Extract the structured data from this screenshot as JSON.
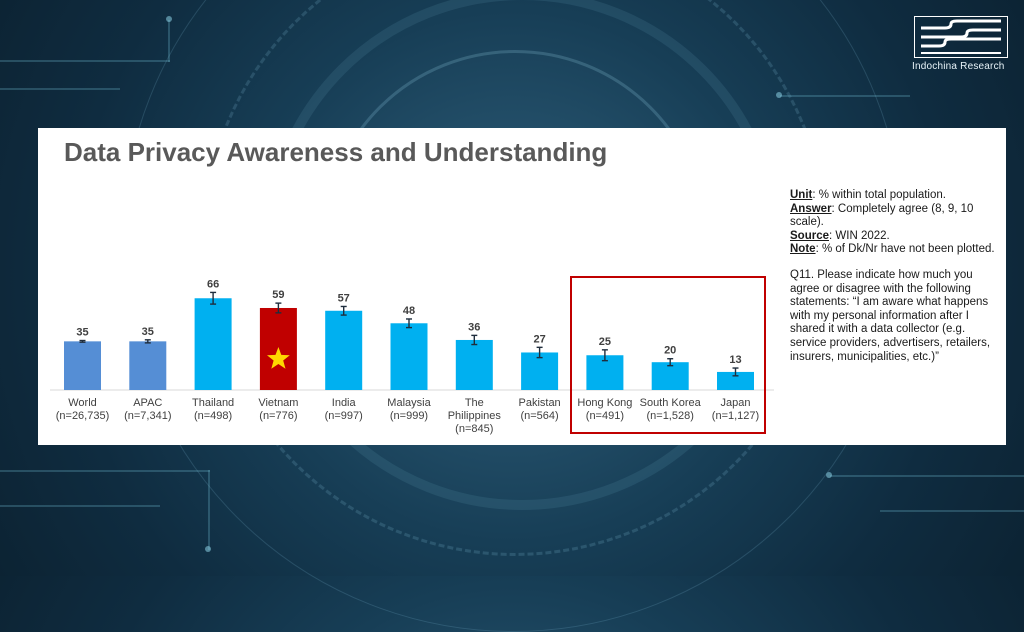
{
  "brand": {
    "name": "Indochina Research"
  },
  "chart_data": {
    "type": "bar",
    "title": "Data Privacy Awareness and Understanding",
    "categories": [
      "World (n=26,735)",
      "APAC (n=7,341)",
      "Thailand (n=498)",
      "Vietnam (n=776)",
      "India (n=997)",
      "Malaysia (n=999)",
      "The Philippines (n=845)",
      "Pakistan (n=564)",
      "Hong Kong (n=491)",
      "South Korea (n=1,528)",
      "Japan (n=1,127)"
    ],
    "category_lines": [
      [
        "World",
        "(n=26,735)"
      ],
      [
        "APAC",
        "(n=7,341)"
      ],
      [
        "Thailand",
        "(n=498)"
      ],
      [
        "Vietnam",
        "(n=776)"
      ],
      [
        "India",
        "(n=997)"
      ],
      [
        "Malaysia",
        "(n=999)"
      ],
      [
        "The",
        "Philippines",
        "(n=845)"
      ],
      [
        "Pakistan",
        "(n=564)"
      ],
      [
        "Hong Kong",
        "(n=491)"
      ],
      [
        "South Korea",
        "(n=1,528)"
      ],
      [
        "Japan",
        "(n=1,127)"
      ]
    ],
    "values": [
      35,
      35,
      66,
      59,
      57,
      48,
      36,
      27,
      25,
      20,
      13
    ],
    "error_margin": [
      0.6,
      1.1,
      4.2,
      3.5,
      3.1,
      3.1,
      3.3,
      3.7,
      3.9,
      2.5,
      2.8
    ],
    "bar_colors": [
      "#558ed5",
      "#558ed5",
      "#00b0f0",
      "#c00000",
      "#00b0f0",
      "#00b0f0",
      "#00b0f0",
      "#00b0f0",
      "#00b0f0",
      "#00b0f0",
      "#00b0f0"
    ],
    "highlighted_bar": "Vietnam",
    "highlight_icon": "star-icon",
    "highlight_icon_color": "#ffd700",
    "grouped_categories": [
      "Hong Kong",
      "South Korea",
      "Japan"
    ],
    "group_box_color": "#c00000",
    "ylim": [
      0,
      75
    ],
    "grid": false,
    "legend": "none",
    "xlabel": "",
    "ylabel": ""
  },
  "notes": {
    "unit_label": "Unit",
    "unit_text": ": % within total population.",
    "answer_label": "Answer",
    "answer_text": ": Completely agree (8, 9, 10 scale).",
    "source_label": "Source",
    "source_text": ": WIN 2022.",
    "note_label": "Note",
    "note_text": ": % of Dk/Nr have not been plotted.",
    "question": "Q11. Please indicate how much you agree or disagree with the following statements: “I am aware what happens with my personal information after I shared it with a data collector (e.g. service providers, advertisers, retailers, insurers, municipalities, etc.)”"
  },
  "colors": {
    "background": "#173e56",
    "panel": "#ffffff",
    "title_text": "#595959",
    "aggregate_bar": "#558ed5",
    "country_bar": "#00b0f0",
    "highlight_bar": "#c00000",
    "highlight_box": "#c00000"
  }
}
